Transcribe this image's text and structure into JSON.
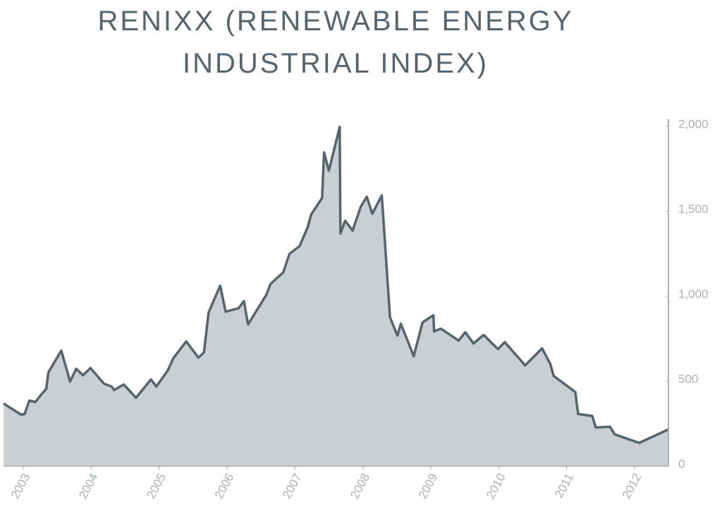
{
  "chart_data": {
    "type": "area",
    "title": "RENIXX (RENEWABLE ENERGY INDUSTRIAL INDEX)",
    "x": [
      2002.71,
      2002.97,
      2003.02,
      2003.09,
      2003.18,
      2003.26,
      2003.34,
      2003.37,
      2003.56,
      2003.69,
      2003.78,
      2003.88,
      2003.99,
      2004.19,
      2004.3,
      2004.34,
      2004.48,
      2004.66,
      2004.88,
      2004.96,
      2005.13,
      2005.21,
      2005.4,
      2005.58,
      2005.66,
      2005.73,
      2005.9,
      2005.98,
      2006.17,
      2006.25,
      2006.31,
      2006.58,
      2006.64,
      2006.83,
      2006.92,
      2007.07,
      2007.19,
      2007.24,
      2007.4,
      2007.43,
      2007.5,
      2007.66,
      2007.67,
      2007.74,
      2007.85,
      2007.97,
      2008.06,
      2008.14,
      2008.28,
      2008.4,
      2008.51,
      2008.56,
      2008.75,
      2008.88,
      2009.04,
      2009.05,
      2009.15,
      2009.41,
      2009.51,
      2009.63,
      2009.78,
      2009.99,
      2010.09,
      2010.39,
      2010.64,
      2010.76,
      2010.81,
      2011.13,
      2011.17,
      2011.38,
      2011.43,
      2011.64,
      2011.71,
      2012.07,
      2012.5
    ],
    "values": [
      369,
      303,
      307,
      386,
      378,
      419,
      456,
      552,
      680,
      498,
      573,
      535,
      577,
      485,
      469,
      448,
      481,
      402,
      510,
      469,
      564,
      635,
      734,
      639,
      668,
      905,
      1062,
      909,
      929,
      971,
      834,
      1008,
      1071,
      1141,
      1249,
      1295,
      1407,
      1481,
      1577,
      1846,
      1739,
      1996,
      1369,
      1444,
      1386,
      1527,
      1585,
      1485,
      1593,
      876,
      768,
      838,
      647,
      846,
      888,
      793,
      809,
      739,
      788,
      722,
      772,
      689,
      730,
      593,
      693,
      602,
      531,
      436,
      307,
      295,
      228,
      232,
      187,
      137,
      216
    ],
    "color": "#c9cfd3",
    "line_color": "#56656d",
    "xlim": [
      2002.71,
      2012.5
    ],
    "xticks": [
      2003,
      2004,
      2005,
      2006,
      2007,
      2008,
      2009,
      2010,
      2011,
      2012
    ],
    "ylim": [
      0,
      2000
    ],
    "yticks": [
      0,
      500,
      {
        "value": 1000,
        "label": "1,000"
      },
      {
        "value": 1500,
        "label": "1,500"
      },
      {
        "value": 2000,
        "label": "2,000"
      }
    ]
  }
}
